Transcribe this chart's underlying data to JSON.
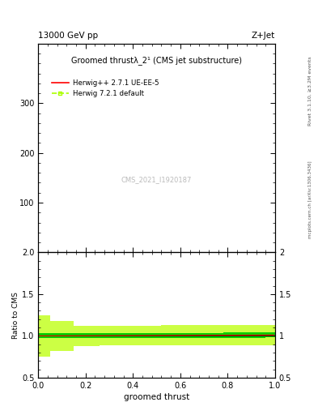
{
  "title_left": "13000 GeV pp",
  "title_right": "Z+Jet",
  "plot_title": "Groomed thrustλ_2¹ (CMS jet substructure)",
  "xlabel": "groomed thrust",
  "ylabel_ratio": "Ratio to CMS",
  "right_label_top": "Rivet 3.1.10, ≥3.2M events",
  "right_label_bottom": "mcplots.cern.ch [arXiv:1306.3436]",
  "watermark": "CMS_2021_I1920187",
  "xlim": [
    0,
    1
  ],
  "ylim_main": [
    0,
    420
  ],
  "ylim_ratio": [
    0.5,
    2.0
  ],
  "yticks_main": [
    100,
    200,
    300
  ],
  "yticks_ratio": [
    0.5,
    1.0,
    1.5,
    2.0
  ],
  "herwig1_color": "#ff0000",
  "herwig1_label": "Herwig++ 2.7.1 UE-EE-5",
  "herwig2_color": "#aaff00",
  "herwig2_label": "Herwig 7.2.1 default",
  "band_inner_color": "#00cc00",
  "band_outer_color": "#ccff44",
  "n_points": 100
}
